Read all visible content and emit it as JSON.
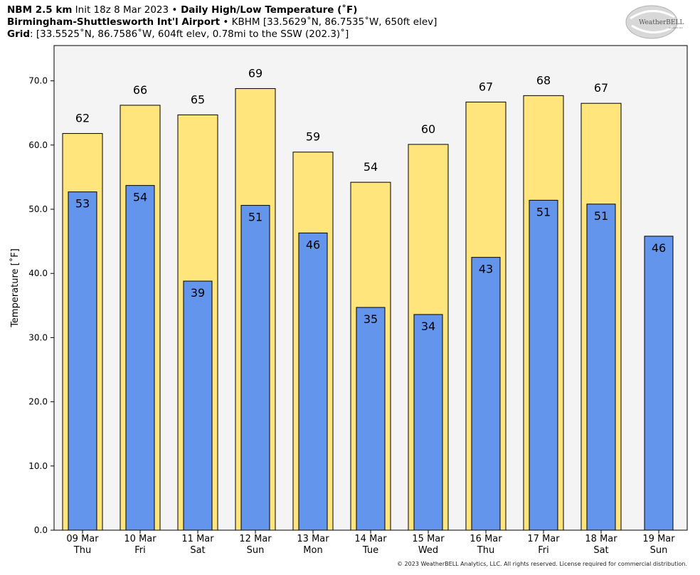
{
  "header": {
    "line1_bold": "NBM 2.5 km",
    "line1_init": " Init 18z 8 Mar 2023 ",
    "line1_sep": "•",
    "line1_title": " Daily High/Low Temperature (˚F)",
    "line2_bold": "Birmingham-Shuttlesworth Int'l Airport",
    "line2_rest": " • KBHM [33.5629˚N, 86.7535˚W, 650ft elev]",
    "line3_bold": "Grid",
    "line3_rest": ": [33.5525˚N, 86.7586˚W, 604ft elev, 0.78mi to the SSW (202.3)˚]"
  },
  "logo": {
    "text": "WeatherBELL",
    "sub": "Analytics LLC"
  },
  "copyright": "© 2023 WeatherBELL Analytics, LLC. All rights reserved. License required for commercial distribution.",
  "colors": {
    "high": "#ffe57c",
    "low": "#6495ed",
    "plot_bg": "#f4f4f4"
  },
  "chart_data": {
    "type": "bar",
    "ylabel": "Temperature [˚F]",
    "ylim": [
      0,
      75.5
    ],
    "yticks": [
      0,
      10,
      20,
      30,
      40,
      50,
      60,
      70
    ],
    "ytick_labels": [
      "0.0",
      "10.0",
      "20.0",
      "30.0",
      "40.0",
      "50.0",
      "60.0",
      "70.0"
    ],
    "grid": false,
    "categories": [
      [
        "09 Mar",
        "Thu"
      ],
      [
        "10 Mar",
        "Fri"
      ],
      [
        "11 Mar",
        "Sat"
      ],
      [
        "12 Mar",
        "Sun"
      ],
      [
        "13 Mar",
        "Mon"
      ],
      [
        "14 Mar",
        "Tue"
      ],
      [
        "15 Mar",
        "Wed"
      ],
      [
        "16 Mar",
        "Thu"
      ],
      [
        "17 Mar",
        "Fri"
      ],
      [
        "18 Mar",
        "Sat"
      ],
      [
        "19 Mar",
        "Sun"
      ]
    ],
    "series": [
      {
        "name": "High",
        "values": [
          61.8,
          66.2,
          64.7,
          68.8,
          58.9,
          54.2,
          60.1,
          66.7,
          67.7,
          66.5,
          null
        ],
        "labels": [
          "62",
          "66",
          "65",
          "69",
          "59",
          "54",
          "60",
          "67",
          "68",
          "67",
          ""
        ]
      },
      {
        "name": "Low",
        "values": [
          52.7,
          53.7,
          38.8,
          50.6,
          46.3,
          34.7,
          33.6,
          42.5,
          51.4,
          50.8,
          45.8
        ],
        "labels": [
          "53",
          "54",
          "39",
          "51",
          "46",
          "35",
          "34",
          "43",
          "51",
          "51",
          "46"
        ]
      }
    ]
  }
}
